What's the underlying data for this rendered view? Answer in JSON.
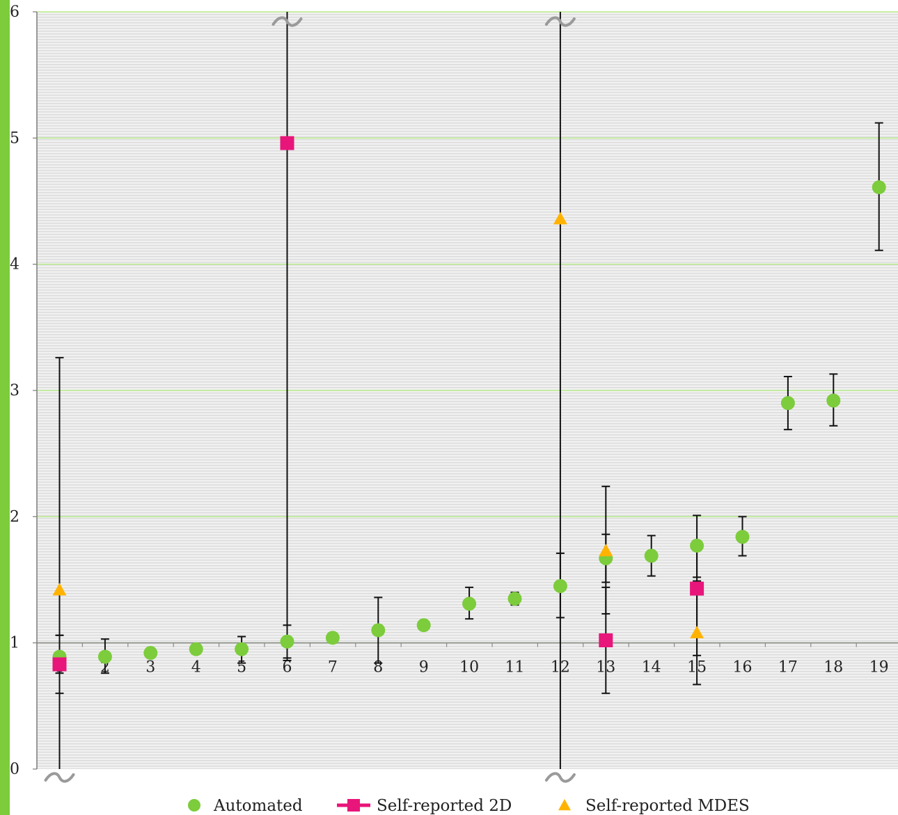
{
  "chart_data": {
    "type": "scatter",
    "title": "",
    "xlabel": "",
    "ylabel": "",
    "x_categories": [
      "1",
      "2",
      "3",
      "4",
      "5",
      "6",
      "7",
      "8",
      "9",
      "10",
      "11",
      "12",
      "13",
      "14",
      "15",
      "16",
      "17",
      "18",
      "19"
    ],
    "ylim": [
      0,
      6
    ],
    "y_ticks": [
      "0",
      "1",
      "2",
      "3",
      "4",
      "5",
      "6"
    ],
    "x_axis_crosses_y_at": 1,
    "grid": "horizontal major gridlines",
    "legend_position": "bottom",
    "axis_break_marks": [
      {
        "category": 1,
        "at": "bottom"
      },
      {
        "category": 6,
        "at": "top"
      },
      {
        "category": 12,
        "at": "top"
      },
      {
        "category": 12,
        "at": "bottom"
      }
    ],
    "series": [
      {
        "name": "Automated",
        "marker": "circle",
        "color": "#7ccc3c",
        "points": [
          {
            "x": 1,
            "y": 0.89,
            "lo": 0.76,
            "hi": 1.06
          },
          {
            "x": 2,
            "y": 0.89,
            "lo": 0.76,
            "hi": 1.03
          },
          {
            "x": 3,
            "y": 0.92
          },
          {
            "x": 4,
            "y": 0.95
          },
          {
            "x": 5,
            "y": 0.95,
            "lo": 0.84,
            "hi": 1.05
          },
          {
            "x": 6,
            "y": 1.01,
            "lo": 0.88,
            "hi": 1.14
          },
          {
            "x": 7,
            "y": 1.04,
            "lo": 1.0,
            "hi": 1.07
          },
          {
            "x": 8,
            "y": 1.1,
            "lo": 0.84,
            "hi": 1.36
          },
          {
            "x": 9,
            "y": 1.14,
            "lo": 1.1,
            "hi": 1.17
          },
          {
            "x": 10,
            "y": 1.31,
            "lo": 1.19,
            "hi": 1.44
          },
          {
            "x": 11,
            "y": 1.35,
            "lo": 1.3,
            "hi": 1.4
          },
          {
            "x": 12,
            "y": 1.45,
            "lo": 1.2,
            "hi": 1.71
          },
          {
            "x": 13,
            "y": 1.67,
            "lo": 1.48,
            "hi": 1.86
          },
          {
            "x": 14,
            "y": 1.69,
            "lo": 1.53,
            "hi": 1.85
          },
          {
            "x": 15,
            "y": 1.77,
            "lo": 1.52,
            "hi": 2.01
          },
          {
            "x": 16,
            "y": 1.84,
            "lo": 1.69,
            "hi": 2.0
          },
          {
            "x": 17,
            "y": 2.9,
            "lo": 2.69,
            "hi": 3.11
          },
          {
            "x": 18,
            "y": 2.92,
            "lo": 2.72,
            "hi": 3.13
          },
          {
            "x": 19,
            "y": 4.61,
            "lo": 4.11,
            "hi": 5.12
          }
        ]
      },
      {
        "name": "Self-reported 2D",
        "marker": "square",
        "color": "#e8157a",
        "points": [
          {
            "x": 1,
            "y": 0.83,
            "lo": 0.6,
            "hi": 1.06
          },
          {
            "x": 6,
            "y": 4.96,
            "lo": 0.86,
            "hi": 6.0
          },
          {
            "x": 13,
            "y": 1.02,
            "lo": 0.6,
            "hi": 1.44
          },
          {
            "x": 15,
            "y": 1.43,
            "lo": 0.9,
            "hi": 1.81
          }
        ]
      },
      {
        "name": "Self-reported MDES",
        "marker": "triangle",
        "color": "#ffb300",
        "points": [
          {
            "x": 1,
            "y": 1.42,
            "lo": 0.0,
            "hi": 3.26
          },
          {
            "x": 12,
            "y": 4.36,
            "lo": 0.0,
            "hi": 6.0
          },
          {
            "x": 13,
            "y": 1.73,
            "lo": 1.23,
            "hi": 2.24
          },
          {
            "x": 15,
            "y": 1.08,
            "lo": 0.67,
            "hi": 1.49
          }
        ]
      }
    ]
  }
}
